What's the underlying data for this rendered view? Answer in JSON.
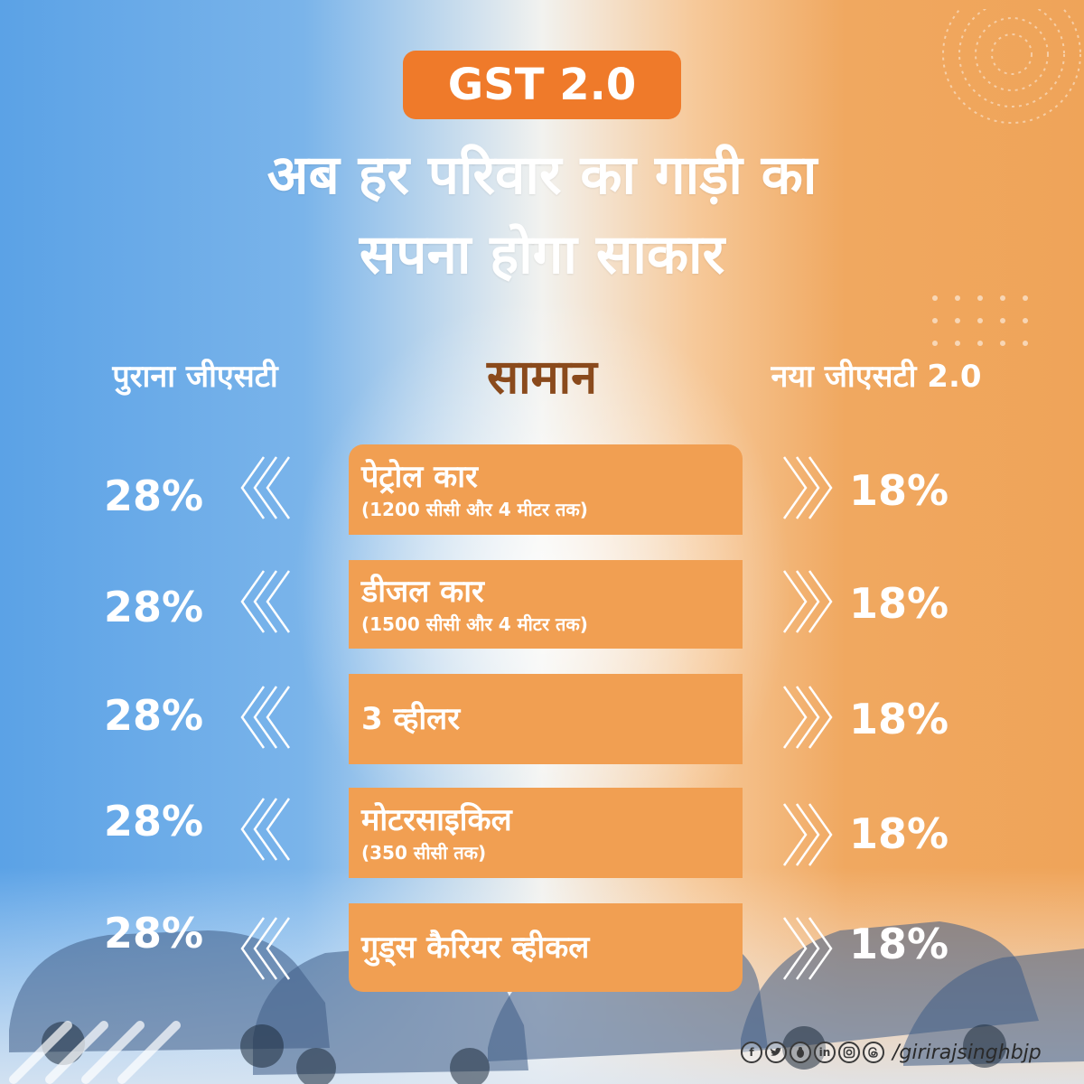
{
  "badge": {
    "text": "GST 2.0"
  },
  "headline": {
    "line1": "अब हर परिवार का गाड़ी का",
    "line2": "सपना होगा साकार"
  },
  "columns": {
    "old": "पुराना जीएसटी",
    "item": "सामान",
    "new": "नया जीएसटी 2.0"
  },
  "rows": [
    {
      "name": "पेट्रोल कार",
      "sub": "(1200 सीसी और 4 मीटर तक)",
      "old": "28%",
      "new": "18%"
    },
    {
      "name": "डीजल कार",
      "sub": "(1500 सीसी और 4 मीटर तक)",
      "old": "28%",
      "new": "18%"
    },
    {
      "name": "3 व्हीलर",
      "sub": "",
      "old": "28%",
      "new": "18%"
    },
    {
      "name": "मोटरसाइकिल",
      "sub": "(350 सीसी तक)",
      "old": "28%",
      "new": "18%"
    },
    {
      "name": "गुड्स कैरियर व्हीकल",
      "sub": "",
      "old": "28%",
      "new": "18%"
    }
  ],
  "footer": {
    "icons": [
      "facebook-icon",
      "twitter-icon",
      "koo-icon",
      "linkedin-icon",
      "instagram-icon",
      "threads-icon"
    ],
    "handle": "/girirajsinghbjp"
  },
  "colors": {
    "orange": "#ef7a2a",
    "box": "#f19f52",
    "blue": "#5ba2e6",
    "brown": "#8a4a1c"
  }
}
